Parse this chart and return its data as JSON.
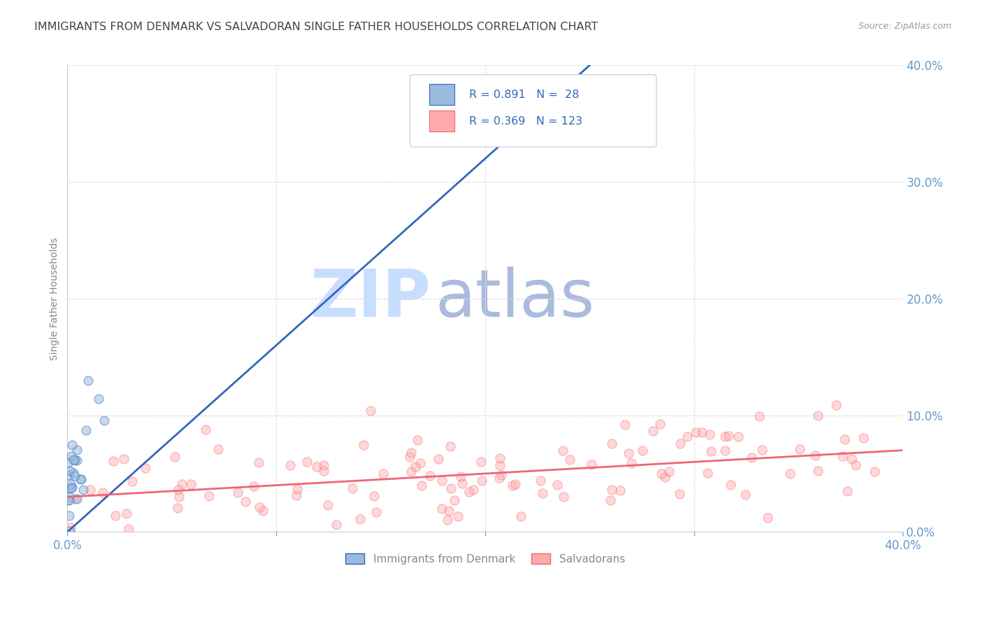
{
  "title": "IMMIGRANTS FROM DENMARK VS SALVADORAN SINGLE FATHER HOUSEHOLDS CORRELATION CHART",
  "source": "Source: ZipAtlas.com",
  "ylabel": "Single Father Households",
  "legend_label1": "Immigrants from Denmark",
  "legend_label2": "Salvadorans",
  "r1": 0.891,
  "n1": 28,
  "r2": 0.369,
  "n2": 123,
  "color_blue": "#99BBDD",
  "color_pink": "#FFAAAA",
  "line_blue": "#3366BB",
  "line_pink": "#EE6677",
  "watermark_zip": "ZIP",
  "watermark_atlas": "atlas",
  "watermark_color_light": "#C8DEFF",
  "watermark_color_dark": "#AABBDD",
  "background": "#FFFFFF",
  "grid_color": "#DDDDDD",
  "title_color": "#444444",
  "axis_tick_color": "#6699CC",
  "ylabel_color": "#888888",
  "source_color": "#999999",
  "legend_text_color": "#888888",
  "legend_r_color": "#3366BB",
  "xlim": [
    0,
    0.4
  ],
  "ylim": [
    0,
    0.4
  ],
  "xticks": [
    0.0,
    0.1,
    0.2,
    0.3,
    0.4
  ],
  "yticks": [
    0.0,
    0.1,
    0.2,
    0.3,
    0.4
  ],
  "blue_line_x0": 0.0,
  "blue_line_y0": 0.0,
  "blue_line_x1": 0.25,
  "blue_line_y1": 0.4,
  "pink_line_x0": 0.0,
  "pink_line_y0": 0.03,
  "pink_line_x1": 0.4,
  "pink_line_y1": 0.07
}
